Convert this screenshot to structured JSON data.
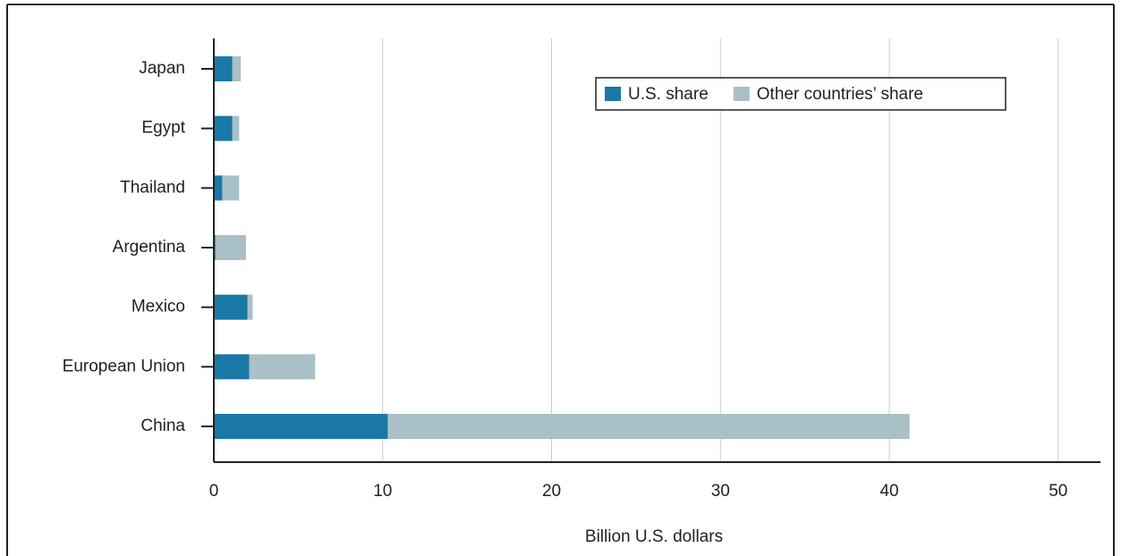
{
  "chart_data": {
    "type": "stacked-barh",
    "categories": [
      "Japan",
      "Egypt",
      "Thailand",
      "Argentina",
      "Mexico",
      "European Union",
      "China"
    ],
    "series": [
      {
        "name": "U.S. share",
        "color": "#1a78a6",
        "values": [
          1.1,
          1.1,
          0.5,
          0.1,
          2.0,
          2.1,
          10.3
        ]
      },
      {
        "name": "Other countries’ share",
        "color": "#a9c0c6",
        "values": [
          0.5,
          0.4,
          1.0,
          1.8,
          0.3,
          3.9,
          30.9
        ]
      }
    ],
    "xlabel": "Billion U.S. dollars",
    "xlim": [
      0,
      52.5
    ],
    "xticks": [
      0,
      10,
      20,
      30,
      40,
      50
    ],
    "grid": true
  }
}
